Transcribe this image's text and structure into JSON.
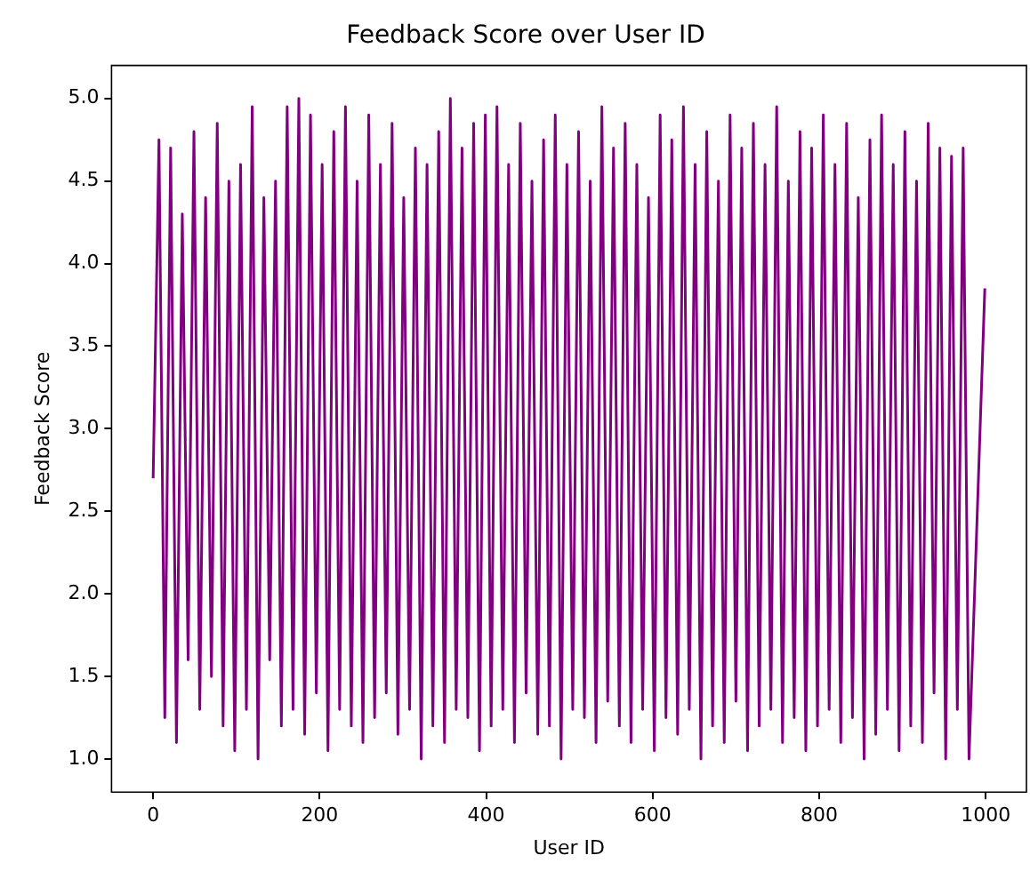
{
  "chart_data": {
    "type": "line",
    "title": "Feedback Score over User ID",
    "xlabel": "User ID",
    "ylabel": "Feedback Score",
    "x": [
      0,
      7,
      14,
      21,
      28,
      35,
      42,
      49,
      56,
      63,
      70,
      77,
      84,
      91,
      98,
      105,
      112,
      119,
      126,
      133,
      140,
      147,
      154,
      161,
      168,
      175,
      182,
      189,
      196,
      203,
      210,
      217,
      224,
      231,
      238,
      245,
      252,
      259,
      266,
      273,
      280,
      287,
      294,
      301,
      308,
      315,
      322,
      329,
      336,
      343,
      350,
      357,
      364,
      371,
      378,
      385,
      392,
      399,
      406,
      413,
      420,
      427,
      434,
      441,
      448,
      455,
      462,
      469,
      476,
      483,
      490,
      497,
      504,
      511,
      518,
      525,
      532,
      539,
      546,
      553,
      560,
      567,
      574,
      581,
      588,
      595,
      602,
      609,
      616,
      623,
      630,
      637,
      644,
      651,
      658,
      665,
      672,
      679,
      686,
      693,
      700,
      707,
      714,
      721,
      728,
      735,
      742,
      749,
      756,
      763,
      770,
      777,
      784,
      791,
      798,
      805,
      812,
      819,
      826,
      833,
      840,
      847,
      854,
      861,
      868,
      875,
      882,
      889,
      896,
      903,
      910,
      917,
      924,
      931,
      938,
      945,
      952,
      959,
      966,
      973,
      980,
      999
    ],
    "series": [
      {
        "color": "#800080",
        "values": [
          2.7,
          4.75,
          1.25,
          4.7,
          1.1,
          4.3,
          1.6,
          4.8,
          1.3,
          4.4,
          1.5,
          4.85,
          1.2,
          4.5,
          1.05,
          4.6,
          1.3,
          4.95,
          1.0,
          4.4,
          1.6,
          4.5,
          1.2,
          4.95,
          1.3,
          5.0,
          1.15,
          4.9,
          1.4,
          4.6,
          1.05,
          4.8,
          1.3,
          4.95,
          1.2,
          4.5,
          1.1,
          4.9,
          1.25,
          4.6,
          1.4,
          4.85,
          1.15,
          4.4,
          1.3,
          4.7,
          1.0,
          4.6,
          1.2,
          4.8,
          1.1,
          5.0,
          1.3,
          4.7,
          1.25,
          4.85,
          1.05,
          4.9,
          1.2,
          4.95,
          1.3,
          4.6,
          1.1,
          4.85,
          1.4,
          4.5,
          1.15,
          4.75,
          1.2,
          4.9,
          1.0,
          4.6,
          1.3,
          4.8,
          1.25,
          4.5,
          1.1,
          4.95,
          1.35,
          4.7,
          1.2,
          4.85,
          1.1,
          4.6,
          1.3,
          4.4,
          1.05,
          4.9,
          1.25,
          4.75,
          1.15,
          4.95,
          1.3,
          4.6,
          1.0,
          4.8,
          1.2,
          4.5,
          1.1,
          4.9,
          1.35,
          4.7,
          1.05,
          4.85,
          1.2,
          4.6,
          1.3,
          4.95,
          1.1,
          4.5,
          1.25,
          4.8,
          1.05,
          4.7,
          1.2,
          4.9,
          1.3,
          4.6,
          1.1,
          4.85,
          1.25,
          4.4,
          1.0,
          4.75,
          1.15,
          4.9,
          1.3,
          4.6,
          1.05,
          4.8,
          1.2,
          4.5,
          1.1,
          4.85,
          1.4,
          4.7,
          1.0,
          4.65,
          1.3,
          4.7,
          1.0,
          3.85
        ]
      }
    ],
    "xlim": [
      -50,
      1049
    ],
    "xticks": [
      0,
      200,
      400,
      600,
      800,
      1000
    ],
    "ylim": [
      0.8,
      5.2
    ],
    "yticks": [
      {
        "value": 1,
        "label": "1.0"
      },
      1.5,
      {
        "value": 2,
        "label": "2.0"
      },
      2.5,
      {
        "value": 3,
        "label": "3.0"
      },
      3.5,
      {
        "value": 4,
        "label": "4.0"
      },
      4.5,
      {
        "value": 5,
        "label": "5.0"
      }
    ],
    "grid": false,
    "legend": false,
    "marker": "none",
    "line_style": "solid"
  }
}
